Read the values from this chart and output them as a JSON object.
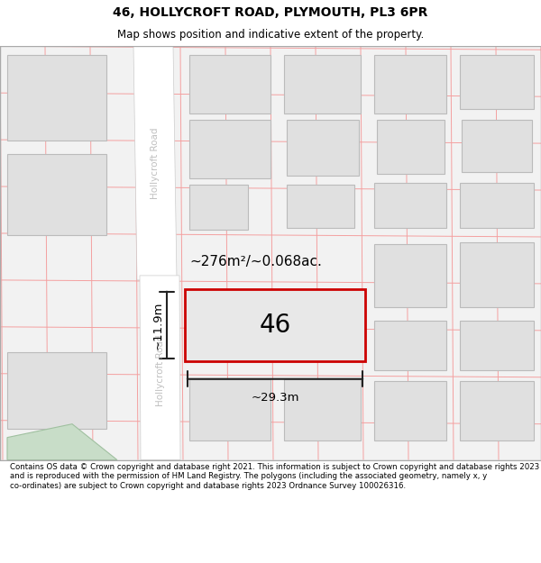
{
  "title": "46, HOLLYCROFT ROAD, PLYMOUTH, PL3 6PR",
  "subtitle": "Map shows position and indicative extent of the property.",
  "footer": "Contains OS data © Crown copyright and database right 2021. This information is subject to Crown copyright and database rights 2023 and is reproduced with the permission of HM Land Registry. The polygons (including the associated geometry, namely x, y co-ordinates) are subject to Crown copyright and database rights 2023 Ordnance Survey 100026316.",
  "map_bg": "#f2f2f2",
  "plot_fill": "#e0e0e0",
  "plot_border": "#bbbbbb",
  "road_fill": "#ffffff",
  "target_fill": "#e8e8e8",
  "target_border": "#cc0000",
  "dim_line_color": "#222222",
  "road_label_color": "#c0c0c0",
  "pink_line_color": "#f4a0a0",
  "green_area_fill": "#c8ddc8",
  "green_area_edge": "#a0c0a0",
  "area_text": "~276m²/~0.068ac.",
  "dim_width": "~29.3m",
  "dim_height": "~11.9m",
  "number_label": "46",
  "title_fontsize": 10,
  "subtitle_fontsize": 8.5,
  "footer_fontsize": 6.2
}
